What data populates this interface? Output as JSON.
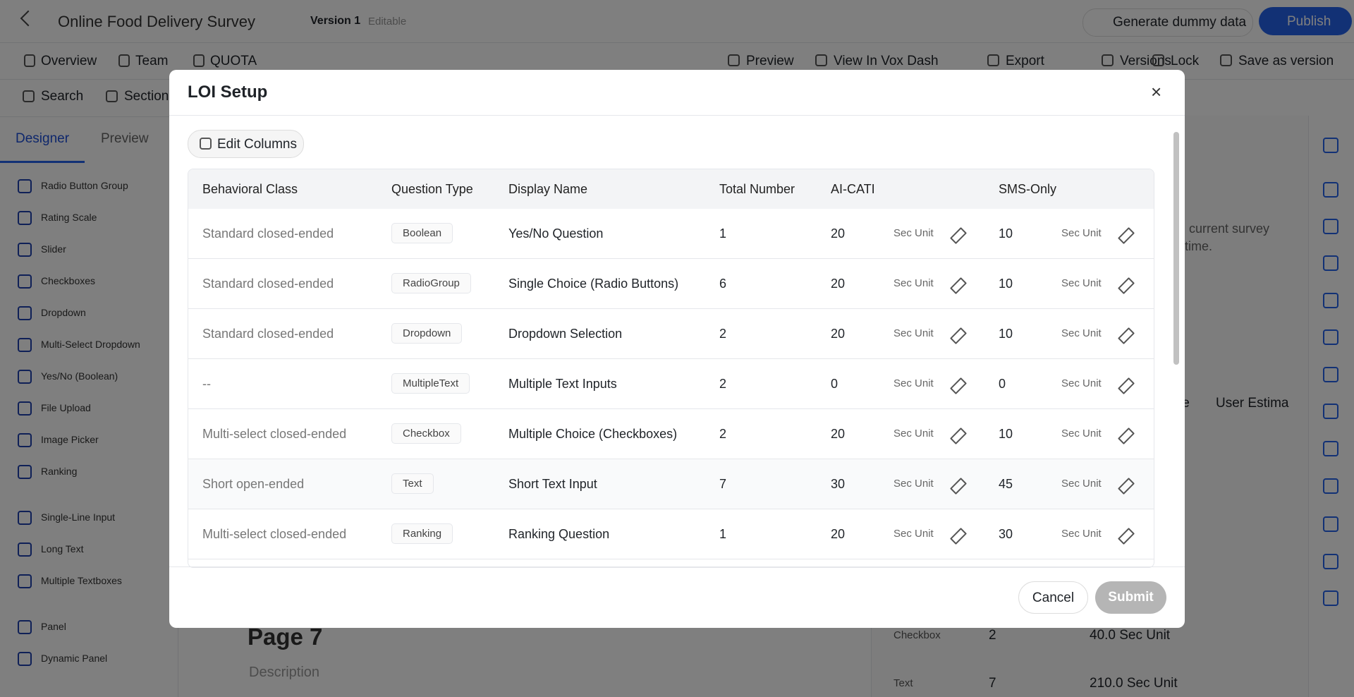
{
  "app": {
    "title": "Online Food Delivery Survey",
    "version": "Version 1",
    "editable": "Editable",
    "generate": "Generate dummy data",
    "publish": "Publish",
    "nav": [
      "Overview",
      "Team",
      "QUOTA"
    ],
    "actions": [
      "Preview",
      "View In Vox Dash",
      "Export",
      "Versions",
      "Lock",
      "Save as version"
    ],
    "toolbar": [
      "Search",
      "Section"
    ],
    "tabs": [
      "Designer",
      "Preview"
    ],
    "sidebar": [
      "Radio Button Group",
      "Rating Scale",
      "Slider",
      "Checkboxes",
      "Dropdown",
      "Multi-Select Dropdown",
      "Yes/No (Boolean)",
      "File Upload",
      "Image Picker",
      "Ranking",
      "Single-Line Input",
      "Long Text",
      "Multiple Textboxes",
      "Panel",
      "Dynamic Panel"
    ],
    "page_title": "Page 7",
    "page_description": "Description",
    "right_panel": {
      "text": [
        "current survey",
        "time."
      ],
      "headers": [
        "te",
        "User Estima"
      ],
      "rows": [
        [
          "Checkbox",
          "2",
          "40.0 Sec Unit"
        ],
        [
          "Text",
          "7",
          "210.0 Sec Unit"
        ]
      ]
    }
  },
  "modal": {
    "title": "LOI Setup",
    "edit_columns": "Edit Columns",
    "columns": [
      "Behavioral Class",
      "Question Type",
      "Display Name",
      "Total Number",
      "AI-CATI",
      "SMS-Only"
    ],
    "unit": "Sec Unit",
    "rows": [
      [
        "Standard closed-ended",
        "Boolean",
        "Yes/No Question",
        1,
        20,
        10
      ],
      [
        "Standard closed-ended",
        "RadioGroup",
        "Single Choice (Radio Buttons)",
        6,
        20,
        10
      ],
      [
        "Standard closed-ended",
        "Dropdown",
        "Dropdown Selection",
        2,
        20,
        10
      ],
      [
        "--",
        "MultipleText",
        "Multiple Text Inputs",
        2,
        0,
        0
      ],
      [
        "Multi-select closed-ended",
        "Checkbox",
        "Multiple Choice (Checkboxes)",
        2,
        20,
        10
      ],
      [
        "Short open-ended",
        "Text",
        "Short Text Input",
        7,
        30,
        45
      ],
      [
        "Multi-select closed-ended",
        "Ranking",
        "Ranking Question",
        1,
        20,
        30
      ]
    ],
    "cancel": "Cancel",
    "submit": "Submit"
  }
}
